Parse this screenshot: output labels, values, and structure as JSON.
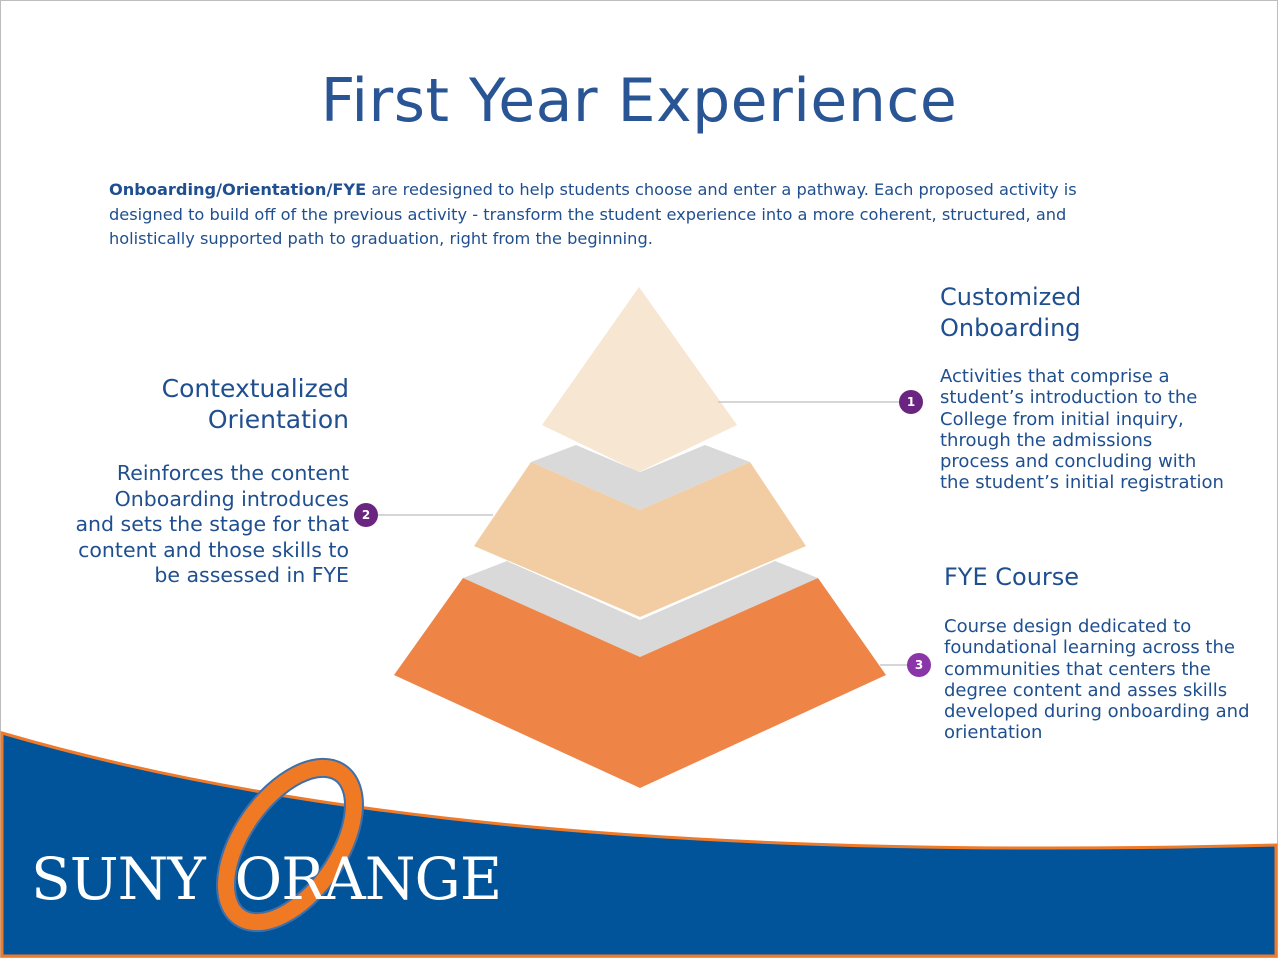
{
  "title": "First Year Experience",
  "intro": {
    "bold": "Onboarding/Orientation/FYE",
    "lines": [
      " are redesigned to help students choose and enter a pathway. Each proposed activity is",
      "designed to build off of the previous activity -  transform the student experience into a more coherent, structured, and",
      "holistically supported path to graduation, right from the beginning."
    ]
  },
  "steps": [
    {
      "number": "1",
      "title_lines": [
        "Customized",
        "Onboarding"
      ],
      "body_lines": [
        "Activities that comprise a",
        "student’s introduction to the",
        "College from initial inquiry,",
        "through the admissions",
        "process and concluding with",
        "the student’s initial registration"
      ]
    },
    {
      "number": "2",
      "title_lines": [
        "Contextualized",
        "Orientation"
      ],
      "body_lines": [
        "Reinforces the content",
        "Onboarding introduces",
        "and sets the stage for that",
        "content and those skills to",
        "be assessed in FYE"
      ]
    },
    {
      "number": "3",
      "title_lines": [
        "FYE Course"
      ],
      "body_lines": [
        "Course design dedicated to",
        "foundational learning across the",
        "communities that centers the",
        "degree content and asses skills",
        "developed during onboarding and",
        "orientation"
      ]
    }
  ],
  "logo": {
    "text_left": "SUNY",
    "text_right": "ORANGE"
  },
  "colors": {
    "blue": "#02549a",
    "orange": "#ee8446",
    "tier1": "#f7e6d2",
    "tier2": "#f2cda3",
    "tier3": "#ee8446",
    "gray": "#d9d9d9",
    "badge1": "#6a2580",
    "badge3": "#8a35a8"
  }
}
